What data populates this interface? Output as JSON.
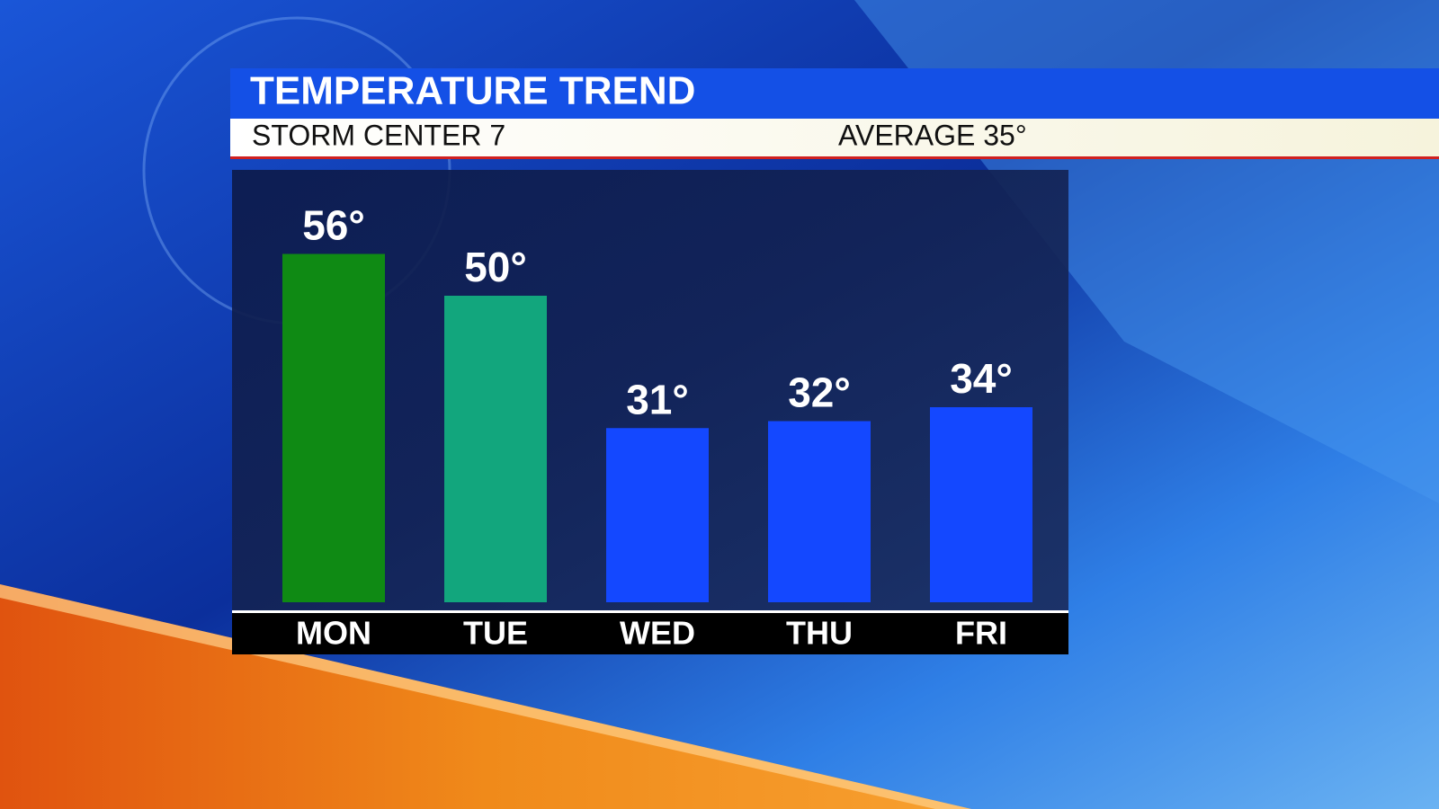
{
  "chart_data": {
    "type": "bar",
    "title": "TEMPERATURE TREND",
    "subtitle": "STORM CENTER 7",
    "annotation": "AVERAGE 35°",
    "categories": [
      "MON",
      "TUE",
      "WED",
      "THU",
      "FRI"
    ],
    "values": [
      56,
      50,
      31,
      32,
      34
    ],
    "value_labels": [
      "56°",
      "50°",
      "31°",
      "32°",
      "34°"
    ],
    "colors": [
      "#0f8a14",
      "#12a67d",
      "#1448ff",
      "#1448ff",
      "#1448ff"
    ],
    "ylim": [
      6,
      62
    ]
  }
}
